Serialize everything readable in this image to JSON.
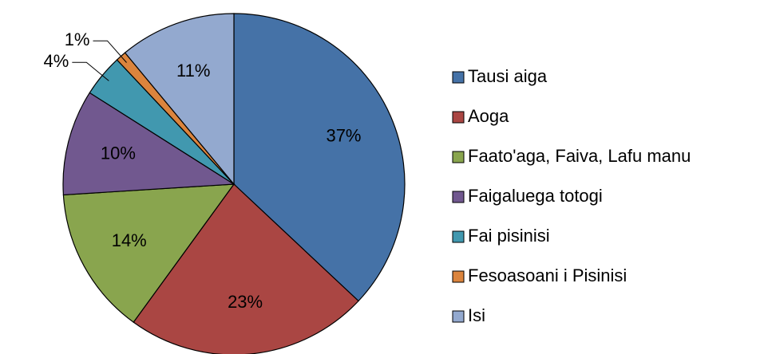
{
  "chart_data": {
    "type": "pie",
    "categories": [
      "Tausi aiga",
      "Aoga",
      "Faato'aga, Faiva, Lafu manu",
      "Faigaluega totogi",
      "Fai pisinisi",
      "Fesoasoani i Pisinisi",
      "Isi"
    ],
    "values": [
      37,
      23,
      14,
      10,
      4,
      1,
      11
    ],
    "value_labels": [
      "37%",
      "23%",
      "14%",
      "10%",
      "4%",
      "1%",
      "11%"
    ],
    "colors": [
      "#4572A7",
      "#AA4643",
      "#89A54E",
      "#71588F",
      "#4198AF",
      "#DB843D",
      "#93A9CF"
    ],
    "legend": "right"
  }
}
